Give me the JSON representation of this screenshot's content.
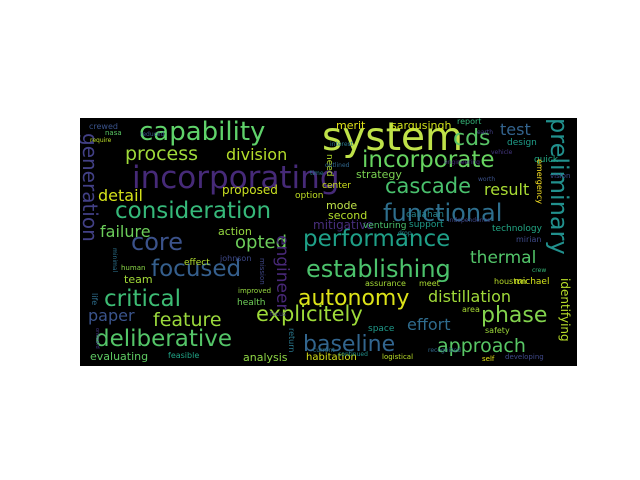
{
  "cloud": {
    "background": "#000000",
    "colormap": "viridis",
    "words": [
      {
        "text": "system",
        "color": "#bfe249"
      },
      {
        "text": "capability",
        "color": "#5fd26a"
      },
      {
        "text": "incorporating",
        "color": "#462a78"
      },
      {
        "text": "incorporate",
        "color": "#67d460"
      },
      {
        "text": "consideration",
        "color": "#36b97a"
      },
      {
        "text": "cds",
        "color": "#58c466"
      },
      {
        "text": "process",
        "color": "#9fda3a"
      },
      {
        "text": "division",
        "color": "#b5de2b"
      },
      {
        "text": "test",
        "color": "#33638d"
      },
      {
        "text": "cascade",
        "color": "#49c16d"
      },
      {
        "text": "result",
        "color": "#a8db34"
      },
      {
        "text": "functional",
        "color": "#2e6f8e"
      },
      {
        "text": "detail",
        "color": "#d5e21a"
      },
      {
        "text": "proposed",
        "color": "#c9e020"
      },
      {
        "text": "generation",
        "color": "#424086"
      },
      {
        "text": "core",
        "color": "#3b528b"
      },
      {
        "text": "failure",
        "color": "#6bcd5a"
      },
      {
        "text": "opted",
        "color": "#6ccd5a"
      },
      {
        "text": "engineer",
        "color": "#482878"
      },
      {
        "text": "performance",
        "color": "#1fa088"
      },
      {
        "text": "focused",
        "color": "#355f8d"
      },
      {
        "text": "establishing",
        "color": "#4cc26c"
      },
      {
        "text": "thermal",
        "color": "#52c569"
      },
      {
        "text": "preliminary",
        "color": "#21908d"
      },
      {
        "text": "critical",
        "color": "#3dbc74"
      },
      {
        "text": "autonomy",
        "color": "#dde318"
      },
      {
        "text": "distillation",
        "color": "#a0da39"
      },
      {
        "text": "paper",
        "color": "#3a548c"
      },
      {
        "text": "feature",
        "color": "#9bd93c"
      },
      {
        "text": "explicitely",
        "color": "#9edb39"
      },
      {
        "text": "phase",
        "color": "#82d34d"
      },
      {
        "text": "effort",
        "color": "#2f6c8e"
      },
      {
        "text": "deliberative",
        "color": "#54c568"
      },
      {
        "text": "baseline",
        "color": "#32658e"
      },
      {
        "text": "approach",
        "color": "#58c765"
      },
      {
        "text": "identifying",
        "color": "#b8de29"
      },
      {
        "text": "evaluating",
        "color": "#5ec962"
      },
      {
        "text": "analysis",
        "color": "#8ed645"
      },
      {
        "text": "habitation",
        "color": "#d8e219"
      },
      {
        "text": "logistical",
        "color": "#bade28"
      },
      {
        "text": "team",
        "color": "#a2da37"
      },
      {
        "text": "human",
        "color": "#8ad547"
      },
      {
        "text": "effect",
        "color": "#b0dd2f"
      },
      {
        "text": "action",
        "color": "#95d840"
      },
      {
        "text": "johnson",
        "color": "#3e4989"
      },
      {
        "text": "health",
        "color": "#6ece58"
      },
      {
        "text": "improved",
        "color": "#95d840"
      },
      {
        "text": "life",
        "color": "#2e6e8e"
      },
      {
        "text": "mitigative",
        "color": "#472e7c"
      },
      {
        "text": "mode",
        "color": "#bfe249"
      },
      {
        "text": "second",
        "color": "#b4de2c"
      },
      {
        "text": "merit",
        "color": "#e2e418"
      },
      {
        "text": "sargusingh",
        "color": "#d2e21b"
      },
      {
        "text": "strategy",
        "color": "#7ad151"
      },
      {
        "text": "center",
        "color": "#cde11d"
      },
      {
        "text": "option",
        "color": "#c0df25"
      },
      {
        "text": "need",
        "color": "#b5de2b"
      },
      {
        "text": "support",
        "color": "#1e9b8a"
      },
      {
        "text": "venturing",
        "color": "#4ac16d"
      },
      {
        "text": "callahan",
        "color": "#25848e"
      },
      {
        "text": "meet",
        "color": "#aadc32"
      },
      {
        "text": "assurance",
        "color": "#a5db36"
      },
      {
        "text": "safety",
        "color": "#9dd93b"
      },
      {
        "text": "technology",
        "color": "#22a785"
      },
      {
        "text": "houston",
        "color": "#bade28"
      },
      {
        "text": "michael",
        "color": "#d2e21b"
      },
      {
        "text": "mirian",
        "color": "#3e4a89"
      },
      {
        "text": "area",
        "color": "#a8db34"
      },
      {
        "text": "crewed",
        "color": "#3a538b"
      },
      {
        "text": "nasa",
        "color": "#5ac864"
      },
      {
        "text": "require",
        "color": "#bddf26"
      },
      {
        "text": "design",
        "color": "#1f9e89"
      },
      {
        "text": "report",
        "color": "#35b779"
      },
      {
        "text": "quick",
        "color": "#22a884"
      },
      {
        "text": "emergency",
        "color": "#fde725"
      },
      {
        "text": "worth",
        "color": "#3b528b"
      },
      {
        "text": "space",
        "color": "#1f9a8a"
      },
      {
        "text": "self",
        "color": "#e5e419"
      },
      {
        "text": "feasible",
        "color": "#20a486"
      },
      {
        "text": "return",
        "color": "#2a788e"
      },
      {
        "text": "minimal",
        "color": "#2c728e"
      },
      {
        "text": "mission",
        "color": "#3f4788"
      },
      {
        "text": "onboard",
        "color": "#443983"
      },
      {
        "text": "continued",
        "color": "#21918c"
      },
      {
        "text": "reduced",
        "color": "#38588c"
      },
      {
        "text": "developing",
        "color": "#3f4889"
      },
      {
        "text": "earth",
        "color": "#433e85"
      },
      {
        "text": "vehicle",
        "color": "#453781"
      },
      {
        "text": "outlined",
        "color": "#31688e"
      },
      {
        "text": "time",
        "color": "#287c8e"
      },
      {
        "text": "drop",
        "color": "#25858e"
      },
      {
        "text": "interest",
        "color": "#2a768e"
      },
      {
        "text": "vision",
        "color": "#3e4989"
      },
      {
        "text": "focus",
        "color": "#433d84"
      },
      {
        "text": "current",
        "color": "#2c728e"
      },
      {
        "text": "crew",
        "color": "#35b779"
      },
      {
        "text": "engineering",
        "color": "#472d7b"
      },
      {
        "text": "independence",
        "color": "#3f4788"
      },
      {
        "text": "recognized",
        "color": "#31688e"
      }
    ]
  }
}
